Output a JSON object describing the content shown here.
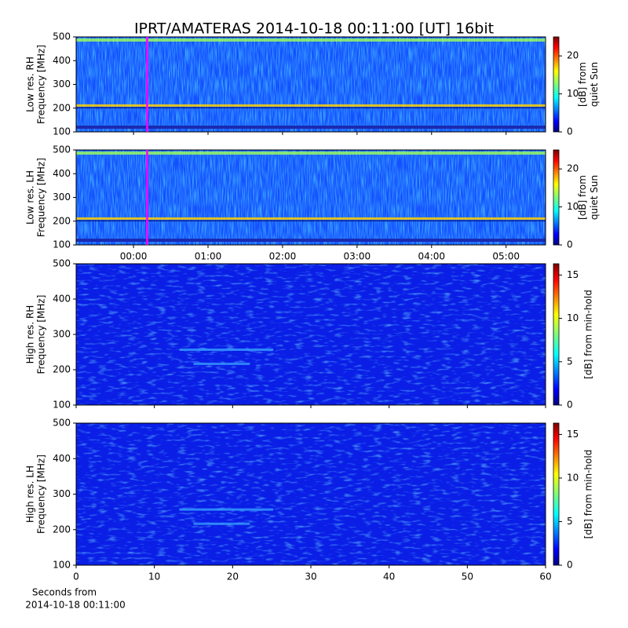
{
  "chart_data": [
    {
      "type": "spectrogram",
      "title": "IPRT/AMATERAS 2014-10-18 00:11:00 [UT]   16bit",
      "ylabel": [
        "Low res. RH",
        "Frequency [MHz]"
      ],
      "ylim": [
        100,
        500
      ],
      "yticks": [
        100,
        200,
        300,
        400,
        500
      ],
      "xlim": [
        -0.77,
        5.53
      ],
      "xticks": [
        0,
        1,
        2,
        3,
        4,
        5
      ],
      "marker_x": 0.183,
      "marker_color": "#ff00ff",
      "colorbar": {
        "label": [
          "[dB] from",
          "quiet Sun"
        ],
        "lim": [
          0,
          25
        ],
        "ticks": [
          0,
          10,
          20
        ]
      }
    },
    {
      "type": "spectrogram",
      "ylabel": [
        "Low res. LH",
        "Frequency [MHz]"
      ],
      "ylim": [
        100,
        500
      ],
      "yticks": [
        100,
        200,
        300,
        400,
        500
      ],
      "xlim": [
        -0.77,
        5.53
      ],
      "xticks": [
        {
          "value": 0,
          "label": "00:00"
        },
        {
          "value": 1,
          "label": "01:00"
        },
        {
          "value": 2,
          "label": "02:00"
        },
        {
          "value": 3,
          "label": "03:00"
        },
        {
          "value": 4,
          "label": "04:00"
        },
        {
          "value": 5,
          "label": "05:00"
        }
      ],
      "marker_x": 0.183,
      "marker_color": "#ff00ff",
      "colorbar": {
        "label": [
          "[dB] from",
          "quiet Sun"
        ],
        "lim": [
          0,
          25
        ],
        "ticks": [
          0,
          10,
          20
        ]
      }
    },
    {
      "type": "spectrogram",
      "ylabel": [
        "High res. RH",
        "Frequency [MHz]"
      ],
      "ylim": [
        100,
        500
      ],
      "yticks": [
        100,
        200,
        300,
        400,
        500
      ],
      "xlim": [
        0,
        60
      ],
      "xticks": [
        0,
        10,
        20,
        30,
        40,
        50,
        60
      ],
      "colorbar": {
        "label": [
          "[dB] from min-hold"
        ],
        "lim": [
          0,
          16.3
        ],
        "ticks": [
          0,
          5,
          10,
          15
        ]
      }
    },
    {
      "type": "spectrogram",
      "ylabel": [
        "High res. LH",
        "Frequency [MHz]"
      ],
      "ylim": [
        100,
        500
      ],
      "yticks": [
        100,
        200,
        300,
        400,
        500
      ],
      "xlim": [
        0,
        60
      ],
      "xticks": [
        0,
        10,
        20,
        30,
        40,
        50,
        60
      ],
      "xlabel": [
        "Seconds from",
        "2014-10-18 00:11:00"
      ],
      "colorbar": {
        "label": [
          "[dB] from min-hold"
        ],
        "lim": [
          0,
          16.3
        ],
        "ticks": [
          0,
          5,
          10,
          15
        ]
      }
    }
  ]
}
